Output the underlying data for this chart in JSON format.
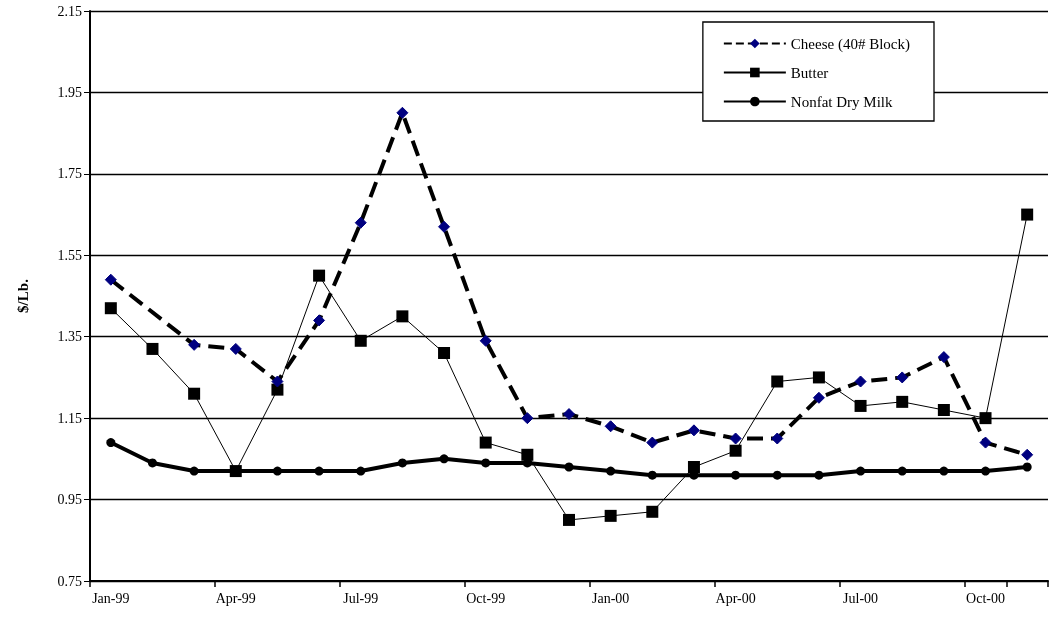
{
  "chart_data": {
    "type": "line",
    "ylabel": "$/Lb.",
    "categories": [
      "Jan-99",
      null,
      null,
      "Apr-99",
      null,
      null,
      "Jul-99",
      null,
      null,
      "Oct-99",
      null,
      null,
      "Jan-00",
      null,
      null,
      "Apr-00",
      null,
      null,
      "Jul-00",
      null,
      null,
      "Oct-00",
      null
    ],
    "series": [
      {
        "name": "Cheese (40# Block)",
        "color": "#000000",
        "colors": [
          "#000080",
          "#000080",
          "#000080",
          "#000080",
          "#000080",
          "#000080",
          "#000080",
          "#000080",
          "#000080",
          "#000080",
          "#000080",
          "#000080",
          "#000080",
          "#000080",
          "#000080",
          "#000080",
          "#000080",
          "#000080",
          "#000080",
          "#000080",
          "#000080",
          "#000080",
          "#000080"
        ],
        "marker": "diamond",
        "line_style": "dashed",
        "values": [
          1.49,
          null,
          1.33,
          1.32,
          1.24,
          1.39,
          1.63,
          1.9,
          1.62,
          1.34,
          1.15,
          1.16,
          1.13,
          1.09,
          1.12,
          1.1,
          1.1,
          1.2,
          1.24,
          1.25,
          1.3,
          1.09,
          1.06
        ]
      },
      {
        "name": "Butter",
        "color": "#000000",
        "marker": "square",
        "line_style": "solid",
        "values": [
          1.42,
          1.32,
          1.21,
          1.02,
          1.22,
          1.5,
          1.34,
          1.4,
          1.31,
          1.09,
          1.06,
          0.9,
          0.91,
          0.92,
          1.03,
          1.07,
          1.24,
          1.25,
          1.18,
          1.19,
          1.17,
          1.15,
          1.65
        ]
      },
      {
        "name": "Nonfat Dry Milk",
        "color": "#000000",
        "marker": "circle",
        "line_style": "solid",
        "values": [
          1.09,
          1.04,
          1.02,
          1.02,
          1.02,
          1.02,
          1.02,
          1.04,
          1.05,
          1.04,
          1.04,
          1.03,
          1.02,
          1.01,
          1.01,
          1.01,
          1.01,
          1.01,
          1.02,
          1.02,
          1.02,
          1.02,
          1.03
        ]
      }
    ],
    "ylim": [
      0.75,
      2.15
    ],
    "yticks": [
      0.75,
      0.95,
      1.15,
      1.35,
      1.55,
      1.75,
      1.95,
      2.15
    ],
    "grid": "y",
    "legend": "top right"
  }
}
